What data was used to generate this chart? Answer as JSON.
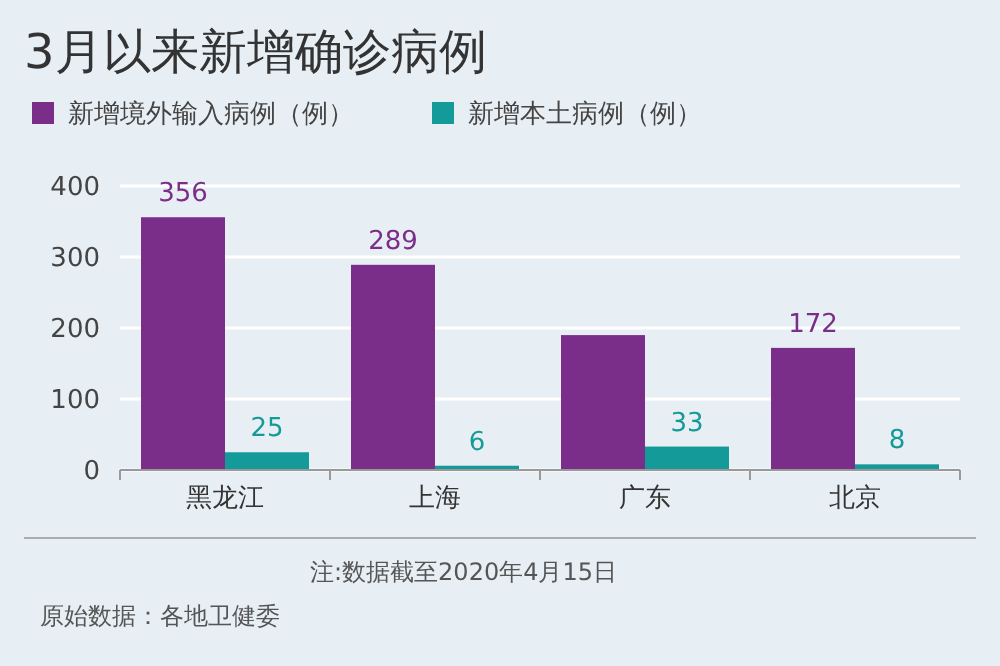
{
  "chart_data": {
    "type": "bar",
    "title": "3月以来新增确诊病例",
    "categories": [
      "黑龙江",
      "上海",
      "广东",
      "北京"
    ],
    "series": [
      {
        "name": "新增境外输入病例（例）",
        "color": "#7b2d8a",
        "values": [
          356,
          289,
          190,
          172
        ],
        "value_labels": [
          "356",
          "289",
          null,
          "172"
        ]
      },
      {
        "name": "新增本土病例（例）",
        "color": "#149a98",
        "values": [
          25,
          6,
          33,
          8
        ],
        "value_labels": [
          "25",
          "6",
          "33",
          "8"
        ]
      }
    ],
    "ylim": [
      0,
      400
    ],
    "yticks": [
      0,
      100,
      200,
      300,
      400
    ],
    "grid": "y",
    "legend": "top left",
    "annotations": [
      "注:数据截至2020年4月15日",
      "原始数据：各地卫健委"
    ]
  }
}
